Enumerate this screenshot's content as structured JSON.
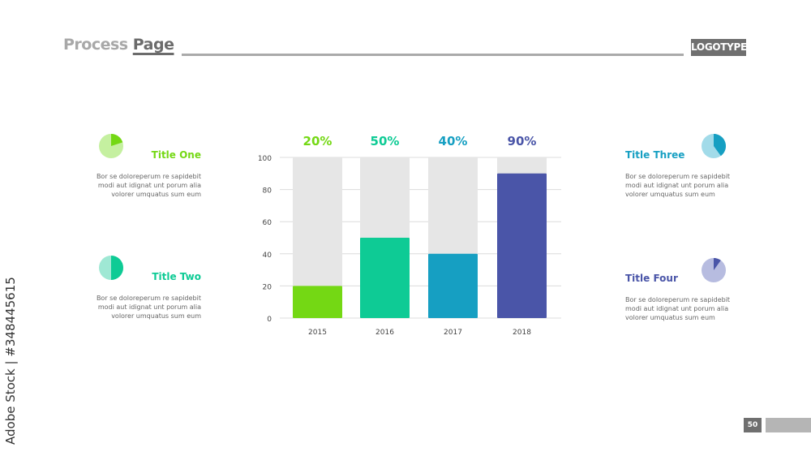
{
  "header": {
    "title_part1": "Process",
    "title_part2": "Page",
    "logo": "LOGOTYPE"
  },
  "items": [
    {
      "title": "Title One",
      "lines": [
        "Bor se doloreperum re sapidebit",
        "modi aut idignat unt porum alia",
        "volorer umquatus sum eum"
      ],
      "pie_fraction": 0.2,
      "color": "#74d814",
      "light": "#c5f0a0"
    },
    {
      "title": "Title Two",
      "lines": [
        "Bor se doloreperum re sapidebit",
        "modi aut idignat unt porum alia",
        "volorer umquatus sum eum"
      ],
      "pie_fraction": 0.5,
      "color": "#0ecb95",
      "light": "#9fe8d4"
    },
    {
      "title": "Title Three",
      "lines": [
        "Bor se doloreperum re sapidebit",
        "modi aut idignat unt porum alia",
        "volorer umquatus sum eum"
      ],
      "pie_fraction": 0.4,
      "color": "#169fc2",
      "light": "#a2dbe9"
    },
    {
      "title": "Title Four",
      "lines": [
        "Bor se doloreperum re sapidebit",
        "modi aut idignat unt porum alia",
        "volorer umquatus sum eum"
      ],
      "pie_fraction": 0.1,
      "color": "#4a55a8",
      "light": "#b7bce0"
    }
  ],
  "chart_data": {
    "type": "bar",
    "categories": [
      "2015",
      "2016",
      "2017",
      "2018"
    ],
    "values": [
      20,
      50,
      40,
      90
    ],
    "value_labels": [
      "20%",
      "50%",
      "40%",
      "90%"
    ],
    "colors": [
      "#74d814",
      "#0ecb95",
      "#169fc2",
      "#4a55a8"
    ],
    "ylim": [
      0,
      100
    ],
    "yticks": [
      "0",
      "20",
      "40",
      "60",
      "80",
      "100"
    ],
    "grid": true
  },
  "footer": {
    "page_number": "50"
  },
  "watermark": "Adobe Stock | #348445615"
}
